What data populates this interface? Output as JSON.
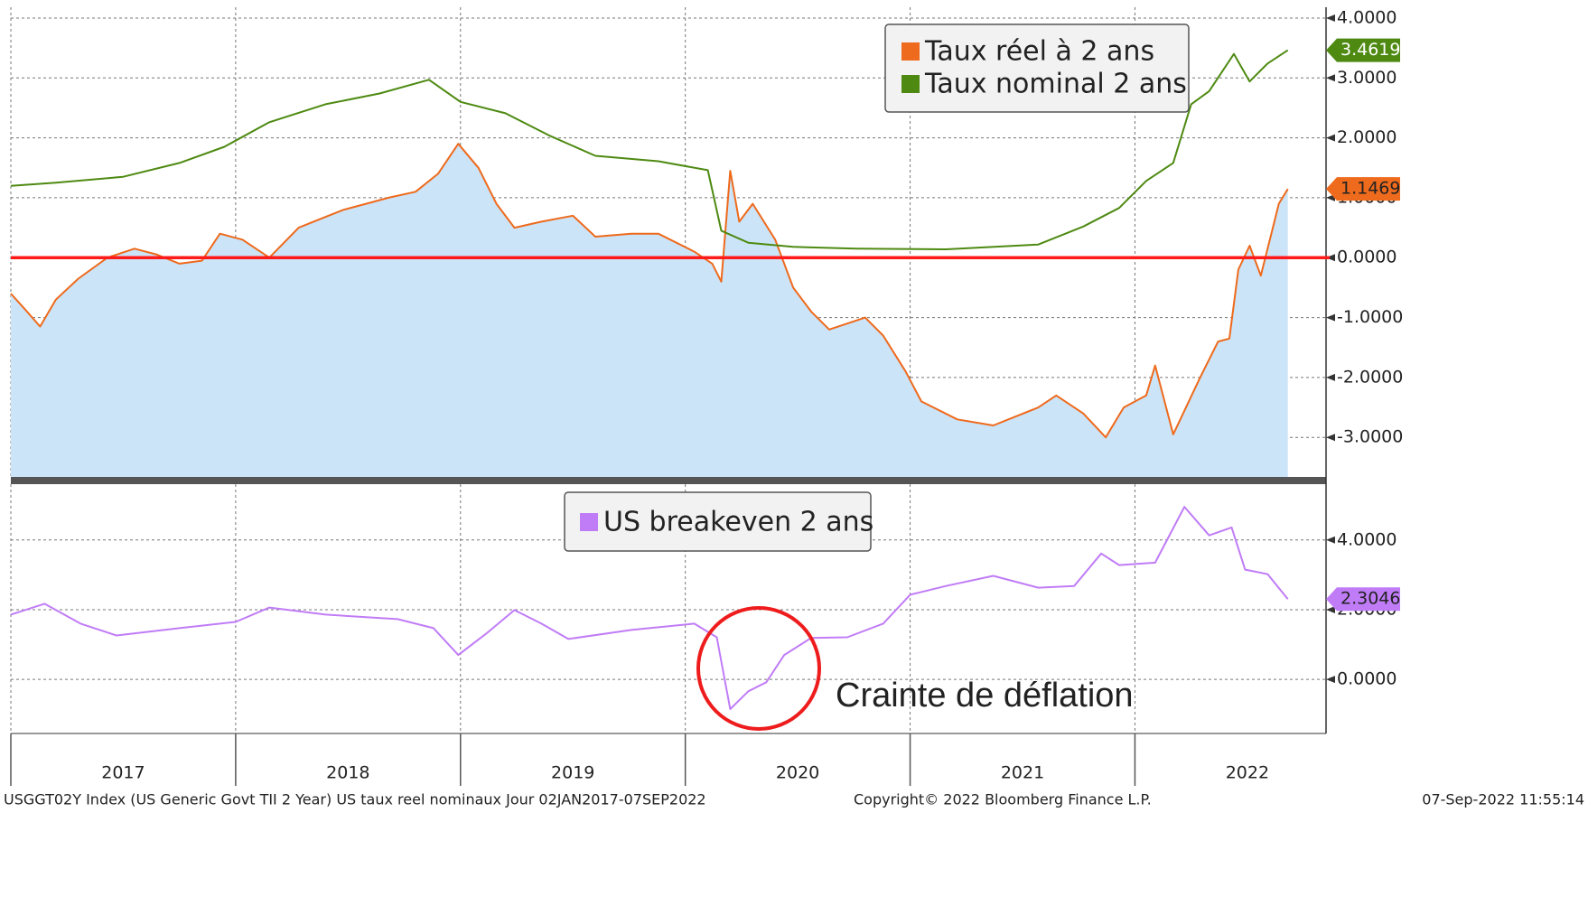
{
  "chart_data": [
    {
      "type": "line",
      "xlim": [
        2017,
        2022.85
      ],
      "xticks": [
        2017,
        2018,
        2019,
        2020,
        2021,
        2022
      ],
      "ylim": [
        -3.66,
        4.18
      ],
      "yticks": [
        {
          "value": 4,
          "label": "4.0000"
        },
        {
          "value": 3,
          "label": "3.0000"
        },
        {
          "value": 2,
          "label": "2.0000"
        },
        {
          "value": 1,
          "label": "1.0000"
        },
        {
          "value": 0,
          "label": "0.0000"
        },
        {
          "value": -1,
          "label": "-1.0000"
        },
        {
          "value": -2,
          "label": "-2.0000"
        },
        {
          "value": -3,
          "label": "-3.0000"
        }
      ],
      "grid": true,
      "hline": {
        "value": 0,
        "color": "#ff1a1a"
      },
      "fill_color": "#cce4f8",
      "series": [
        {
          "name": "Taux réel à 2 ans",
          "color": "#ee6a1c",
          "fill": true,
          "x": [
            2017.0,
            2017.06,
            2017.13,
            2017.2,
            2017.3,
            2017.43,
            2017.55,
            2017.65,
            2017.75,
            2017.85,
            2017.93,
            2018.03,
            2018.15,
            2018.28,
            2018.38,
            2018.48,
            2018.58,
            2018.68,
            2018.8,
            2018.9,
            2018.99,
            2019.08,
            2019.16,
            2019.24,
            2019.36,
            2019.5,
            2019.6,
            2019.76,
            2019.88,
            2020.04,
            2020.12,
            2020.16,
            2020.2,
            2020.24,
            2020.3,
            2020.4,
            2020.48,
            2020.56,
            2020.64,
            2020.8,
            2020.88,
            2020.98,
            2021.05,
            2021.21,
            2021.37,
            2021.57,
            2021.65,
            2021.77,
            2021.87,
            2021.95,
            2022.05,
            2022.09,
            2022.17,
            2022.29,
            2022.37,
            2022.42,
            2022.46,
            2022.51,
            2022.56,
            2022.61,
            2022.64,
            2022.68
          ],
          "values": [
            -0.6,
            -0.85,
            -1.15,
            -0.7,
            -0.35,
            0,
            0.15,
            0.05,
            -0.1,
            -0.05,
            0.4,
            0.3,
            0,
            0.5,
            0.65,
            0.8,
            0.9,
            1.0,
            1.1,
            1.4,
            1.9,
            1.5,
            0.9,
            0.5,
            0.6,
            0.7,
            0.35,
            0.4,
            0.4,
            0.1,
            -0.1,
            -0.4,
            1.45,
            0.6,
            0.9,
            0.3,
            -0.5,
            -0.9,
            -1.2,
            -1.0,
            -1.3,
            -1.9,
            -2.4,
            -2.7,
            -2.8,
            -2.5,
            -2.3,
            -2.6,
            -3.0,
            -2.5,
            -2.3,
            -1.8,
            -2.95,
            -2.0,
            -1.4,
            -1.35,
            -0.2,
            0.2,
            -0.3,
            0.45,
            0.9,
            1.1469
          ]
        },
        {
          "name": "Taux nominal 2 ans",
          "color": "#4e8a12",
          "x": [
            2017.0,
            2017.2,
            2017.5,
            2017.75,
            2017.95,
            2018.15,
            2018.4,
            2018.64,
            2018.86,
            2019.0,
            2019.2,
            2019.4,
            2019.6,
            2019.88,
            2020.1,
            2020.16,
            2020.28,
            2020.48,
            2020.76,
            2021.16,
            2021.57,
            2021.77,
            2021.93,
            2022.05,
            2022.17,
            2022.25,
            2022.33,
            2022.44,
            2022.51,
            2022.59,
            2022.68
          ],
          "values": [
            1.2,
            1.25,
            1.35,
            1.58,
            1.85,
            2.26,
            2.56,
            2.74,
            2.97,
            2.6,
            2.41,
            2.03,
            1.7,
            1.61,
            1.46,
            0.45,
            0.25,
            0.18,
            0.15,
            0.14,
            0.22,
            0.52,
            0.83,
            1.28,
            1.58,
            2.56,
            2.78,
            3.4,
            2.94,
            3.24,
            3.4619
          ]
        }
      ]
    },
    {
      "type": "line",
      "xlim": [
        2017,
        2022.85
      ],
      "xticks": [
        2017,
        2018,
        2019,
        2020,
        2021,
        2022
      ],
      "ylim": [
        -1.55,
        5.6
      ],
      "yticks": [
        {
          "value": 4,
          "label": "4.0000"
        },
        {
          "value": 2,
          "label": "2.0000"
        },
        {
          "value": 0,
          "label": "0.0000"
        }
      ],
      "grid": true,
      "annotation": "Crainte de déflation",
      "series": [
        {
          "name": "US breakeven 2 ans",
          "color": "#c07cf6",
          "x": [
            2017.0,
            2017.15,
            2017.31,
            2017.47,
            2017.75,
            2018.0,
            2018.15,
            2018.4,
            2018.72,
            2018.88,
            2018.99,
            2019.12,
            2019.24,
            2019.36,
            2019.48,
            2019.76,
            2020.04,
            2020.14,
            2020.2,
            2020.28,
            2020.36,
            2020.44,
            2020.56,
            2020.72,
            2020.88,
            2021.0,
            2021.16,
            2021.37,
            2021.57,
            2021.73,
            2021.85,
            2021.93,
            2022.09,
            2022.22,
            2022.33,
            2022.43,
            2022.49,
            2022.59,
            2022.68
          ],
          "values": [
            1.86,
            2.17,
            1.6,
            1.26,
            1.47,
            1.65,
            2.06,
            1.86,
            1.73,
            1.47,
            0.7,
            1.34,
            1.99,
            1.6,
            1.16,
            1.42,
            1.6,
            1.21,
            -0.85,
            -0.34,
            -0.08,
            0.7,
            1.19,
            1.21,
            1.6,
            2.43,
            2.68,
            2.97,
            2.63,
            2.68,
            3.61,
            3.28,
            3.35,
            4.95,
            4.13,
            4.36,
            3.15,
            3.02,
            2.3046
          ]
        }
      ]
    }
  ],
  "footer": {
    "left": "USGGT02Y Index (US Generic Govt TII 2 Year) US taux reel nominaux  Jour 02JAN2017-07SEP2022",
    "center": "Copyright© 2022 Bloomberg Finance L.P.",
    "right": "07-Sep-2022 11:55:14"
  }
}
